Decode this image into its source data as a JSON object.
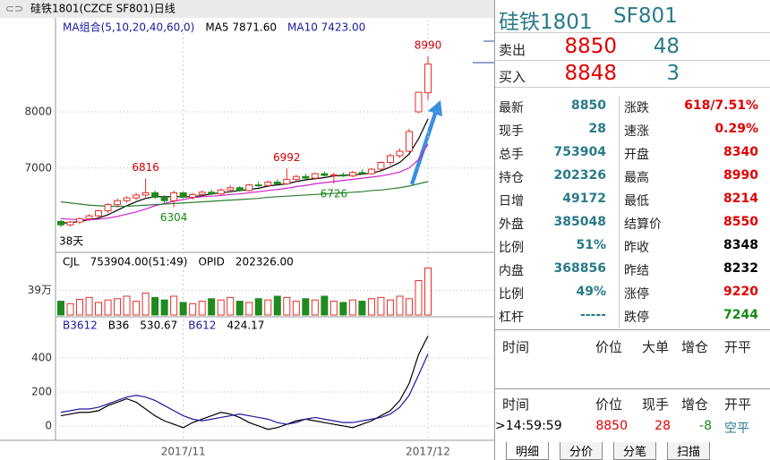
{
  "chart_data": [
    {
      "type": "candlestick",
      "title": "硅铁1801(CZCE SF801)日线",
      "legend_texts": [
        "MA组合(5,10,20,40,60,0)",
        "MA5 7871.60",
        "MA10 7423.00"
      ],
      "categories": [
        null,
        null,
        null,
        null,
        null,
        null,
        null,
        null,
        null,
        null,
        null,
        null,
        null,
        "2017/11",
        null,
        null,
        null,
        null,
        null,
        null,
        null,
        null,
        null,
        null,
        null,
        null,
        null,
        null,
        null,
        null,
        null,
        null,
        null,
        null,
        null,
        null,
        null,
        null,
        null,
        "2017/12"
      ],
      "open": [
        6050,
        5990,
        6040,
        6100,
        6150,
        6240,
        6350,
        6420,
        6470,
        6520,
        6560,
        6480,
        6420,
        6560,
        6480,
        6530,
        6570,
        6540,
        6610,
        6650,
        6600,
        6700,
        6690,
        6750,
        6720,
        6800,
        6850,
        6820,
        6900,
        6870,
        6880,
        6860,
        6920,
        6900,
        6980,
        7100,
        7220,
        7300,
        8000,
        8340
      ],
      "high": [
        6080,
        6060,
        6120,
        6180,
        6260,
        6380,
        6460,
        6500,
        6560,
        6816,
        6600,
        6520,
        6600,
        6580,
        6560,
        6600,
        6620,
        6640,
        6700,
        6680,
        6720,
        6760,
        6780,
        6800,
        6992,
        6880,
        6900,
        6920,
        6940,
        6920,
        6920,
        6950,
        6980,
        7000,
        7120,
        7260,
        7350,
        7700,
        8348,
        8990
      ],
      "low": [
        5950,
        5960,
        6000,
        6060,
        6120,
        6200,
        6300,
        6380,
        6430,
        6480,
        6450,
        6380,
        6304,
        6460,
        6440,
        6500,
        6520,
        6520,
        6580,
        6580,
        6580,
        6660,
        6660,
        6700,
        6700,
        6760,
        6800,
        6800,
        6850,
        6726,
        6840,
        6840,
        6880,
        6880,
        6960,
        7060,
        7180,
        7280,
        7980,
        8214
      ],
      "close": [
        5990,
        6040,
        6100,
        6150,
        6240,
        6350,
        6420,
        6470,
        6520,
        6560,
        6480,
        6420,
        6560,
        6480,
        6530,
        6570,
        6540,
        6610,
        6650,
        6600,
        6700,
        6690,
        6750,
        6720,
        6800,
        6850,
        6820,
        6900,
        6870,
        6880,
        6860,
        6920,
        6900,
        6980,
        7100,
        7220,
        7300,
        7650,
        8348,
        8850
      ],
      "up_color": "#e0302a",
      "down_color": "#1f8a1f",
      "ma_lines": [
        {
          "color": "#000000",
          "values": [
            6020,
            6030,
            6050,
            6080,
            6110,
            6170,
            6250,
            6330,
            6400,
            6460,
            6490,
            6490,
            6490,
            6490,
            6490,
            6510,
            6540,
            6560,
            6580,
            6600,
            6620,
            6640,
            6680,
            6700,
            6720,
            6760,
            6790,
            6810,
            6830,
            6860,
            6870,
            6880,
            6890,
            6910,
            6950,
            7020,
            7100,
            7250,
            7520,
            7872
          ]
        },
        {
          "color": "#d020d0",
          "values": [
            6100,
            6090,
            6080,
            6080,
            6090,
            6110,
            6140,
            6180,
            6220,
            6270,
            6330,
            6370,
            6410,
            6440,
            6470,
            6490,
            6500,
            6510,
            6530,
            6540,
            6560,
            6580,
            6600,
            6620,
            6640,
            6670,
            6690,
            6720,
            6740,
            6760,
            6780,
            6800,
            6820,
            6840,
            6860,
            6890,
            6930,
            7000,
            7150,
            7423
          ]
        },
        {
          "color": "#2e7d32",
          "values": [
            6400,
            6380,
            6360,
            6340,
            6330,
            6320,
            6320,
            6320,
            6330,
            6340,
            6350,
            6360,
            6370,
            6380,
            6390,
            6400,
            6410,
            6420,
            6430,
            6440,
            6450,
            6460,
            6480,
            6490,
            6500,
            6510,
            6520,
            6530,
            6540,
            6550,
            6560,
            6570,
            6580,
            6600,
            6610,
            6630,
            6650,
            6680,
            6720,
            6760
          ]
        }
      ],
      "high_labels": [
        8990,
        6816,
        6992
      ],
      "low_labels": [
        6726,
        6304
      ],
      "note": "38天",
      "ylim": [
        5500,
        9640
      ],
      "yticks": [
        7000,
        8000
      ],
      "grid": true
    },
    {
      "type": "bar",
      "legend_texts": [
        "CJL",
        "753904.00(51:49)",
        "OPID",
        "202326.00"
      ],
      "values": [
        22,
        18,
        25,
        28,
        20,
        24,
        26,
        30,
        22,
        35,
        28,
        24,
        30,
        20,
        18,
        22,
        26,
        24,
        28,
        22,
        20,
        26,
        24,
        30,
        28,
        22,
        26,
        24,
        30,
        22,
        20,
        24,
        22,
        26,
        28,
        24,
        30,
        26,
        55,
        75
      ],
      "ylim": [
        0,
        97
      ],
      "yticks": [
        {
          "value": 39,
          "label": "39万"
        }
      ]
    },
    {
      "type": "line",
      "legend_texts": [
        "B3612",
        "B36",
        "530.67",
        "B612",
        "424.17"
      ],
      "series": [
        {
          "color": "#000000",
          "values": [
            60,
            70,
            80,
            80,
            90,
            120,
            140,
            160,
            140,
            100,
            60,
            30,
            10,
            -10,
            20,
            40,
            60,
            80,
            70,
            50,
            20,
            0,
            -20,
            -10,
            10,
            30,
            40,
            30,
            20,
            10,
            0,
            -10,
            10,
            30,
            60,
            90,
            150,
            250,
            420,
            530
          ]
        },
        {
          "color": "#1a1aa0",
          "values": [
            80,
            90,
            100,
            100,
            110,
            130,
            150,
            170,
            180,
            170,
            150,
            120,
            90,
            60,
            40,
            30,
            40,
            50,
            60,
            70,
            60,
            50,
            40,
            20,
            10,
            20,
            40,
            50,
            40,
            30,
            20,
            20,
            30,
            40,
            50,
            70,
            110,
            180,
            300,
            424
          ]
        }
      ],
      "ylim": [
        -74,
        632
      ],
      "yticks": [
        0,
        200,
        400
      ]
    }
  ],
  "quote": {
    "name": "硅铁1801",
    "code": "SF801",
    "ask": [
      "卖出",
      "8850",
      "48"
    ],
    "bid": [
      "买入",
      "8848",
      "3"
    ],
    "rows": [
      [
        "最新",
        "8850",
        "涨跌",
        "618/7.51%"
      ],
      [
        "现手",
        "28",
        "速涨",
        "0.29%"
      ],
      [
        "总手",
        "753904",
        "开盘",
        "8340"
      ],
      [
        "持仓",
        "202326",
        "最高",
        "8990"
      ],
      [
        "日增",
        "49172",
        "最低",
        "8214"
      ],
      [
        "外盘",
        "385048",
        "结算价",
        "8550"
      ],
      [
        "比例",
        "51%",
        "昨收",
        "8348"
      ],
      [
        "内盘",
        "368856",
        "昨结",
        "8232"
      ],
      [
        "比例",
        "49%",
        "涨停",
        "9220"
      ],
      [
        "杠杆",
        "-----",
        "跌停",
        "7244"
      ]
    ],
    "big_head": [
      "时间",
      "价位",
      "大单",
      "增仓",
      "开平"
    ],
    "trade_head": [
      "时间",
      "价位",
      "现手",
      "增仓",
      "开平"
    ],
    "trade": [
      "14:59:59",
      "8850",
      "28",
      "-8",
      "空平"
    ],
    "tabs": [
      "明细",
      "分价",
      "分笔",
      "扫描"
    ]
  }
}
